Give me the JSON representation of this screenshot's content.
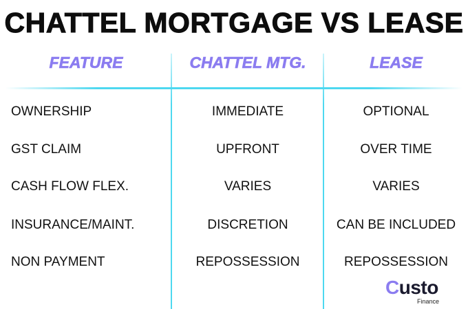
{
  "title": "CHATTEL MORTGAGE VS LEASE",
  "headers": [
    "FEATURE",
    "CHATTEL MTG.",
    "LEASE"
  ],
  "rows": [
    [
      "OWNERSHIP",
      "IMMEDIATE",
      "OPTIONAL"
    ],
    [
      "GST CLAIM",
      "UPFRONT",
      "OVER TIME"
    ],
    [
      "CASH FLOW FLEX.",
      "VARIES",
      "VARIES"
    ],
    [
      "INSURANCE/MAINT.",
      "DISCRETION",
      "CAN BE INCLUDED"
    ],
    [
      "NON PAYMENT",
      "REPOSSESSION",
      "REPOSSESSION"
    ]
  ],
  "logo": {
    "first": "C",
    "rest": "usto",
    "sub": "Finance"
  },
  "colors": {
    "header": "#8b7cf0",
    "divider": "#4dd8f0",
    "text": "#111111"
  }
}
